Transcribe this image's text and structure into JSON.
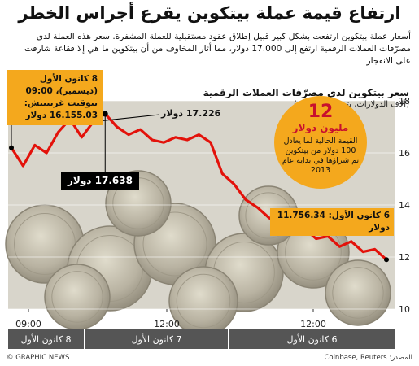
{
  "header": {
    "title": "ارتفاع قيمة عملة بيتكوين يقرع أجراس الخطر",
    "lead": "أسعار عملة بيتكوين ارتفعت بشكل كبير قبيل إطلاق عقود مستقبلية للعملة المشفرة. سعر هذه العملة لدى مصرّفات العملات الرقمية ارتفع إلى 17.000 دولار، مما أثار المخاوف من أن بيتكوين ما هي إلا فقاعة شارفت على الانفجار"
  },
  "chart_header": {
    "title": "سعر بيتكوين لدى مصرّفات العملات الرقمية",
    "subtitle": "(آلاف الدولارات، بتوقيت غرينيتش)"
  },
  "annotations": {
    "open_line1": "8 كانون الأول (ديسمبر)، 09:00",
    "open_line2": "بتوقيت غرينيتش: 16.155.03 دولار",
    "low_label": "17.638 دولار",
    "high_label": "17.226 دولار",
    "close_line1": "6 كانون الأول: 11.756.34 دولار"
  },
  "info_circle": {
    "number": "12",
    "unit": "مليون دولار",
    "text": "القيمة الحالية لما يعادل 100 دولار من بيتكوين تم شراؤها في بداية عام 2013"
  },
  "footer": {
    "credit": "© GRAPHIC NEWS",
    "source": "المصدر: Coinbase, Reuters"
  },
  "chart_data": {
    "type": "line",
    "y_ticks": [
      "10",
      "12",
      "14",
      "16",
      "18"
    ],
    "ylim": [
      10,
      18
    ],
    "x_time_ticks": [
      "09:00",
      "12:00",
      "12:00"
    ],
    "day_labels": [
      "8 كانون الأول",
      "7 كانون الأول",
      "6 كانون الأول"
    ],
    "grid": true,
    "colors": {
      "line": "#e3120b",
      "accent": "#f4a81d",
      "day_bar": "#555555"
    },
    "series": [
      {
        "values": [
          16.2,
          15.5,
          16.3,
          16.0,
          16.8,
          17.3,
          16.6,
          17.2,
          17.5,
          17.0,
          16.7,
          16.9,
          16.5,
          16.4,
          16.6,
          16.5,
          16.7,
          16.4,
          15.2,
          14.8,
          14.2,
          13.9,
          13.5,
          13.3,
          13.0,
          13.1,
          12.7,
          12.8,
          12.4,
          12.6,
          12.2,
          12.3,
          11.9
        ]
      }
    ]
  }
}
